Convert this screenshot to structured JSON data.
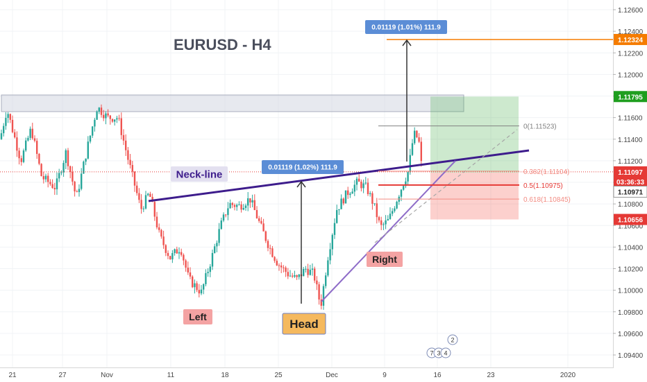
{
  "chart_data": {
    "type": "candlestick",
    "title": "EURUSD - H4",
    "y_axis": {
      "range": [
        1.093,
        1.128
      ],
      "ticks": [
        "1.12600",
        "1.12400",
        "1.12200",
        "1.12000",
        "1.11800",
        "1.11600",
        "1.11400",
        "1.11200",
        "1.11000",
        "1.10800",
        "1.10600",
        "1.10400",
        "1.10200",
        "1.10000",
        "1.09800",
        "1.09600",
        "1.09400"
      ]
    },
    "x_axis": {
      "ticks": [
        "21",
        "27",
        "Nov",
        "11",
        "18",
        "25",
        "Dec",
        "9",
        "16",
        "23",
        "2020"
      ]
    },
    "price_labels": [
      {
        "text": "1.12324",
        "color": "#f57c00"
      },
      {
        "text": "1.11795",
        "color": "#1e9e1e"
      },
      {
        "text": "1.11097",
        "color": "#e53935"
      },
      {
        "text": "03:36:33",
        "color": "#e53935"
      },
      {
        "text": "1.10971",
        "color": "#333333"
      },
      {
        "text": "1.10656",
        "color": "#e53935"
      }
    ],
    "current_price": 1.11097,
    "target_price": 1.12324,
    "take_profit": 1.11795,
    "stop_loss": 1.10656,
    "fibonacci": [
      {
        "label": "0(1.11523)",
        "price": 1.11523,
        "color": "#808080"
      },
      {
        "label": "0.382(1.11104)",
        "price": 1.11104,
        "color": "#f28b82"
      },
      {
        "label": "0.5(1.10975)",
        "price": 1.10975,
        "color": "#e53935"
      },
      {
        "label": "0.618(1.10845)",
        "price": 1.10845,
        "color": "#f28b82"
      }
    ],
    "annotations": {
      "neckline": "Neck-line",
      "left": "Left",
      "head": "Head",
      "right": "Right",
      "measure_head": "0.01119 (1.02%) 111.9",
      "measure_target": "0.01119 (1.01%) 111.9"
    },
    "event_badges": [
      "7",
      "3",
      "4",
      "2"
    ],
    "colors": {
      "up": "#26a69a",
      "down": "#ef5350",
      "neckline": "#3d1c8c",
      "target": "#f57c00"
    }
  }
}
